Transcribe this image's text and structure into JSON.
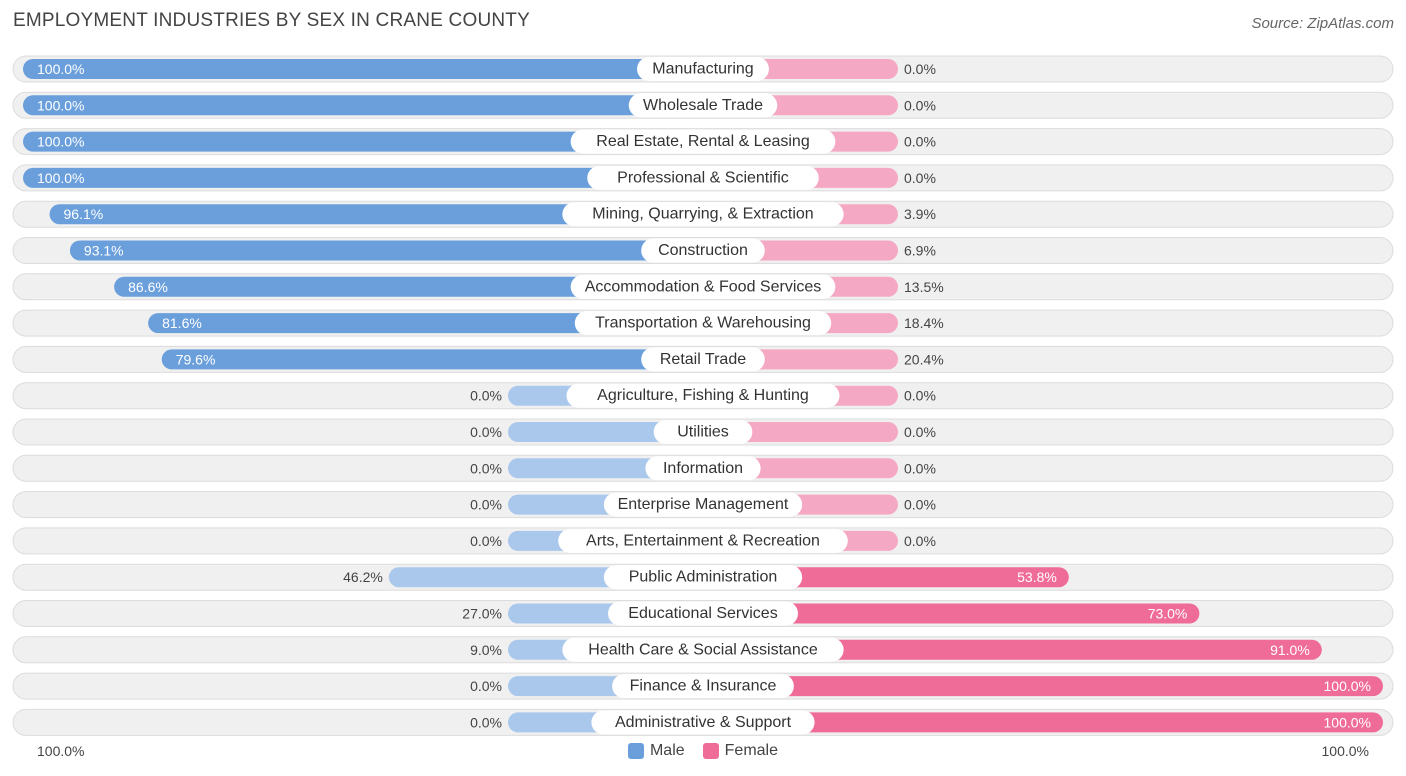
{
  "header": {
    "title": "EMPLOYMENT INDUSTRIES BY SEX IN CRANE COUNTY",
    "source": "Source: ZipAtlas.com"
  },
  "colors": {
    "male_strong": "#6a9fdc",
    "male_light": "#aac7ec",
    "female_strong": "#f06c98",
    "female_light": "#f5a8c3",
    "row_bg": "#f0f0f0",
    "row_border": "#dcdcdc"
  },
  "footer": {
    "left_axis": "100.0%",
    "right_axis": "100.0%",
    "legend_male": "Male",
    "legend_female": "Female"
  },
  "chart_data": {
    "type": "bar",
    "orientation": "diverging-horizontal",
    "title": "EMPLOYMENT INDUSTRIES BY SEX IN CRANE COUNTY",
    "xlim": [
      -100,
      100
    ],
    "series": [
      {
        "name": "Male",
        "values": [
          100.0,
          100.0,
          100.0,
          100.0,
          96.1,
          93.1,
          86.6,
          81.6,
          79.6,
          0.0,
          0.0,
          0.0,
          0.0,
          0.0,
          46.2,
          27.0,
          9.0,
          0.0,
          0.0
        ]
      },
      {
        "name": "Female",
        "values": [
          0.0,
          0.0,
          0.0,
          0.0,
          3.9,
          6.9,
          13.5,
          18.4,
          20.4,
          0.0,
          0.0,
          0.0,
          0.0,
          0.0,
          53.8,
          73.0,
          91.0,
          100.0,
          100.0
        ]
      }
    ],
    "categories": [
      "Manufacturing",
      "Wholesale Trade",
      "Real Estate, Rental & Leasing",
      "Professional & Scientific",
      "Mining, Quarrying, & Extraction",
      "Construction",
      "Accommodation & Food Services",
      "Transportation & Warehousing",
      "Retail Trade",
      "Agriculture, Fishing & Hunting",
      "Utilities",
      "Information",
      "Enterprise Management",
      "Arts, Entertainment & Recreation",
      "Public Administration",
      "Educational Services",
      "Health Care & Social Assistance",
      "Finance & Insurance",
      "Administrative & Support"
    ],
    "male_labels": [
      "100.0%",
      "100.0%",
      "100.0%",
      "100.0%",
      "96.1%",
      "93.1%",
      "86.6%",
      "81.6%",
      "79.6%",
      "0.0%",
      "0.0%",
      "0.0%",
      "0.0%",
      "0.0%",
      "46.2%",
      "27.0%",
      "9.0%",
      "0.0%",
      "0.0%"
    ],
    "female_labels": [
      "0.0%",
      "0.0%",
      "0.0%",
      "0.0%",
      "3.9%",
      "6.9%",
      "13.5%",
      "18.4%",
      "20.4%",
      "0.0%",
      "0.0%",
      "0.0%",
      "0.0%",
      "0.0%",
      "53.8%",
      "73.0%",
      "91.0%",
      "100.0%",
      "100.0%"
    ],
    "legend": [
      "Male",
      "Female"
    ],
    "legend_position": "bottom-center"
  }
}
